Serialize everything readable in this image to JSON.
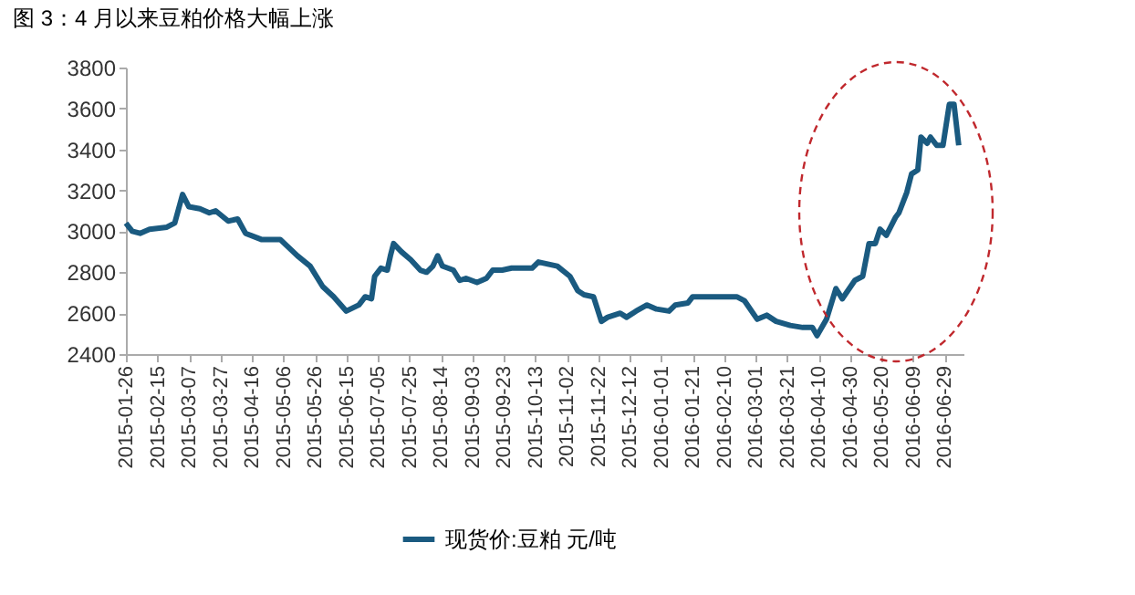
{
  "chart_data": {
    "type": "line",
    "title": "图 3：4 月以来豆粕价格大幅上涨",
    "x": [
      "2015-01-26",
      "2015-01-30",
      "2015-02-04",
      "2015-02-10",
      "2015-02-21",
      "2015-02-26",
      "2015-03-03",
      "2015-03-07",
      "2015-03-14",
      "2015-03-20",
      "2015-03-24",
      "2015-04-01",
      "2015-04-07",
      "2015-04-12",
      "2015-04-22",
      "2015-05-04",
      "2015-05-15",
      "2015-05-23",
      "2015-05-31",
      "2015-06-07",
      "2015-06-15",
      "2015-06-23",
      "2015-06-27",
      "2015-07-01",
      "2015-07-03",
      "2015-07-07",
      "2015-07-11",
      "2015-07-13",
      "2015-07-15",
      "2015-07-20",
      "2015-07-26",
      "2015-08-01",
      "2015-08-05",
      "2015-08-09",
      "2015-08-12",
      "2015-08-15",
      "2015-08-22",
      "2015-08-26",
      "2015-08-30",
      "2015-09-06",
      "2015-09-12",
      "2015-09-16",
      "2015-09-22",
      "2015-09-28",
      "2015-10-11",
      "2015-10-15",
      "2015-10-21",
      "2015-10-27",
      "2015-11-04",
      "2015-11-09",
      "2015-11-13",
      "2015-11-19",
      "2015-11-24",
      "2015-11-28",
      "2015-12-06",
      "2015-12-10",
      "2015-12-16",
      "2015-12-23",
      "2015-12-29",
      "2016-01-06",
      "2016-01-10",
      "2016-01-18",
      "2016-01-21",
      "2016-02-18",
      "2016-02-23",
      "2016-03-02",
      "2016-03-08",
      "2016-03-14",
      "2016-03-23",
      "2016-03-31",
      "2016-04-06",
      "2016-04-09",
      "2016-04-15",
      "2016-04-21",
      "2016-04-25",
      "2016-05-03",
      "2016-05-08",
      "2016-05-12",
      "2016-05-16",
      "2016-05-19",
      "2016-05-23",
      "2016-05-29",
      "2016-05-31",
      "2016-06-05",
      "2016-06-08",
      "2016-06-12",
      "2016-06-14",
      "2016-06-18",
      "2016-06-20",
      "2016-06-24",
      "2016-06-28",
      "2016-07-02",
      "2016-07-05",
      "2016-07-08"
    ],
    "series": [
      {
        "name": "现货价:豆粕 元/吨",
        "color": "#1a5a80",
        "values": [
          3040,
          3000,
          2990,
          3010,
          3020,
          3040,
          3180,
          3120,
          3110,
          3090,
          3100,
          3050,
          3060,
          2990,
          2960,
          2960,
          2880,
          2830,
          2730,
          2680,
          2610,
          2640,
          2680,
          2670,
          2780,
          2820,
          2810,
          2880,
          2940,
          2900,
          2860,
          2810,
          2800,
          2830,
          2880,
          2830,
          2810,
          2760,
          2770,
          2750,
          2770,
          2810,
          2810,
          2820,
          2820,
          2850,
          2840,
          2830,
          2780,
          2710,
          2690,
          2680,
          2560,
          2580,
          2600,
          2580,
          2610,
          2640,
          2620,
          2610,
          2640,
          2650,
          2680,
          2680,
          2660,
          2570,
          2590,
          2560,
          2540,
          2530,
          2530,
          2490,
          2570,
          2720,
          2670,
          2760,
          2780,
          2940,
          2940,
          3010,
          2980,
          3070,
          3090,
          3190,
          3280,
          3300,
          3460,
          3430,
          3460,
          3420,
          3420,
          3620,
          3620,
          3420
        ]
      }
    ],
    "xlim": [
      "2015-01-26",
      "2016-07-11"
    ],
    "xticks": [
      "2015-01-26",
      "2015-02-15",
      "2015-03-07",
      "2015-03-27",
      "2015-04-16",
      "2015-05-06",
      "2015-05-26",
      "2015-06-15",
      "2015-07-05",
      "2015-07-25",
      "2015-08-14",
      "2015-09-03",
      "2015-09-23",
      "2015-10-13",
      "2015-11-02",
      "2015-11-22",
      "2015-12-12",
      "2016-01-01",
      "2016-01-21",
      "2016-02-10",
      "2016-03-01",
      "2016-03-21",
      "2016-04-10",
      "2016-04-30",
      "2016-05-20",
      "2016-06-09",
      "2016-06-29"
    ],
    "ylim": [
      2400,
      3800
    ],
    "yticks": [
      2400,
      2600,
      2800,
      3000,
      3200,
      3400,
      3600,
      3800
    ],
    "grid": false,
    "legend": "bottom"
  }
}
